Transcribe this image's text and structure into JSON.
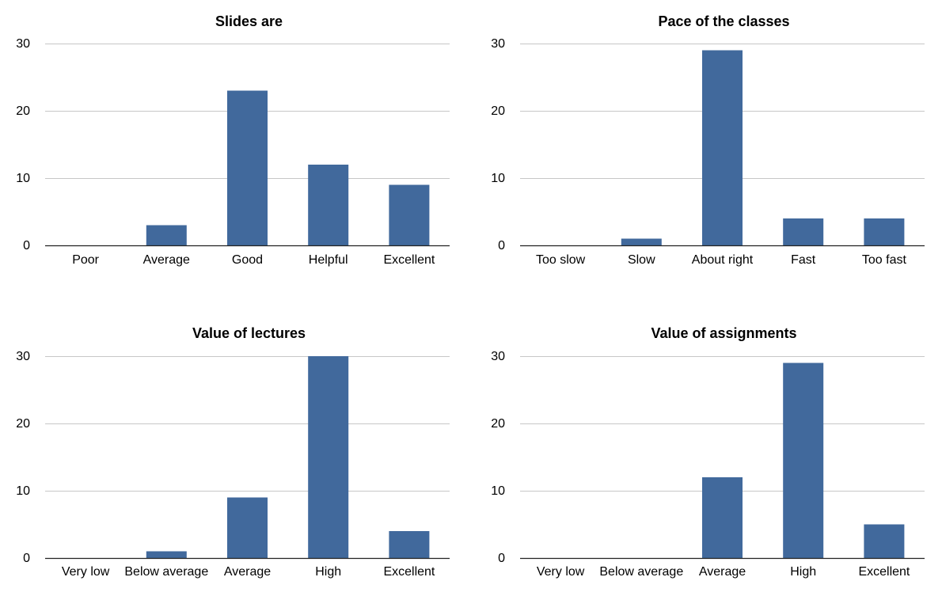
{
  "colors": {
    "bar": "#41699c",
    "grid": "#c7c7c7",
    "axis": "#222222",
    "background": "#ffffff"
  },
  "chart_data": [
    {
      "type": "bar",
      "title": "Slides are",
      "categories": [
        "Poor",
        "Average",
        "Good",
        "Helpful",
        "Excellent"
      ],
      "values": [
        0,
        3,
        23,
        12,
        9
      ],
      "ylim": [
        0,
        30
      ],
      "yticks": [
        0,
        10,
        20,
        30
      ],
      "grid": true,
      "legend": "none"
    },
    {
      "type": "bar",
      "title": "Pace of the classes",
      "categories": [
        "Too slow",
        "Slow",
        "About right",
        "Fast",
        "Too fast"
      ],
      "values": [
        0,
        1,
        29,
        4,
        4
      ],
      "ylim": [
        0,
        30
      ],
      "yticks": [
        0,
        10,
        20,
        30
      ],
      "grid": true,
      "legend": "none"
    },
    {
      "type": "bar",
      "title": "Value of lectures",
      "categories": [
        "Very low",
        "Below average",
        "Average",
        "High",
        "Excellent"
      ],
      "values": [
        0,
        1,
        9,
        30,
        4
      ],
      "ylim": [
        0,
        30
      ],
      "yticks": [
        0,
        10,
        20,
        30
      ],
      "grid": true,
      "legend": "none"
    },
    {
      "type": "bar",
      "title": "Value of assignments",
      "categories": [
        "Very low",
        "Below average",
        "Average",
        "High",
        "Excellent"
      ],
      "values": [
        0,
        0,
        12,
        29,
        5
      ],
      "ylim": [
        0,
        30
      ],
      "yticks": [
        0,
        10,
        20,
        30
      ],
      "grid": true,
      "legend": "none"
    }
  ]
}
